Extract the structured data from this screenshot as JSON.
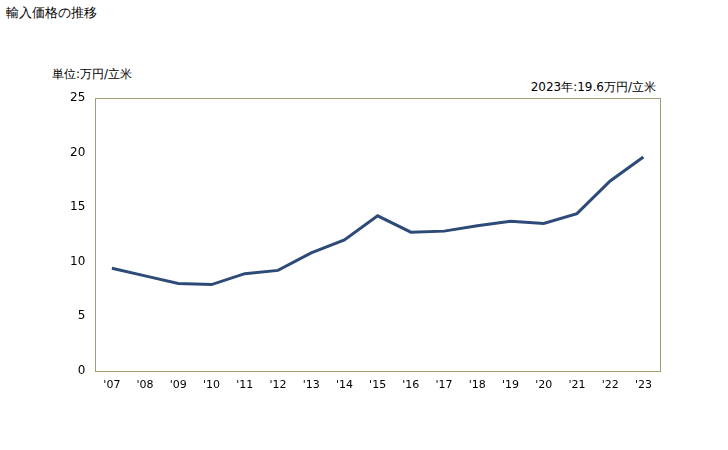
{
  "chart_data": {
    "type": "line",
    "title": "輸入価格の推移",
    "ylabel": "単位:万円/立米",
    "annotation": "2023年:19.6万円/立米",
    "categories": [
      "'07",
      "'08",
      "'09",
      "'10",
      "'11",
      "'12",
      "'13",
      "'14",
      "'15",
      "'16",
      "'17",
      "'18",
      "'19",
      "'20",
      "'21",
      "'22",
      "'23"
    ],
    "values": [
      9.4,
      8.7,
      8.0,
      7.9,
      8.9,
      9.2,
      10.8,
      12.0,
      14.2,
      12.7,
      12.8,
      13.3,
      13.7,
      13.5,
      14.4,
      17.4,
      19.6
    ],
    "color": "#2e4a78",
    "ylim": [
      0,
      25
    ],
    "yticks": [
      0,
      5,
      10,
      15,
      20,
      25
    ],
    "grid": false
  }
}
